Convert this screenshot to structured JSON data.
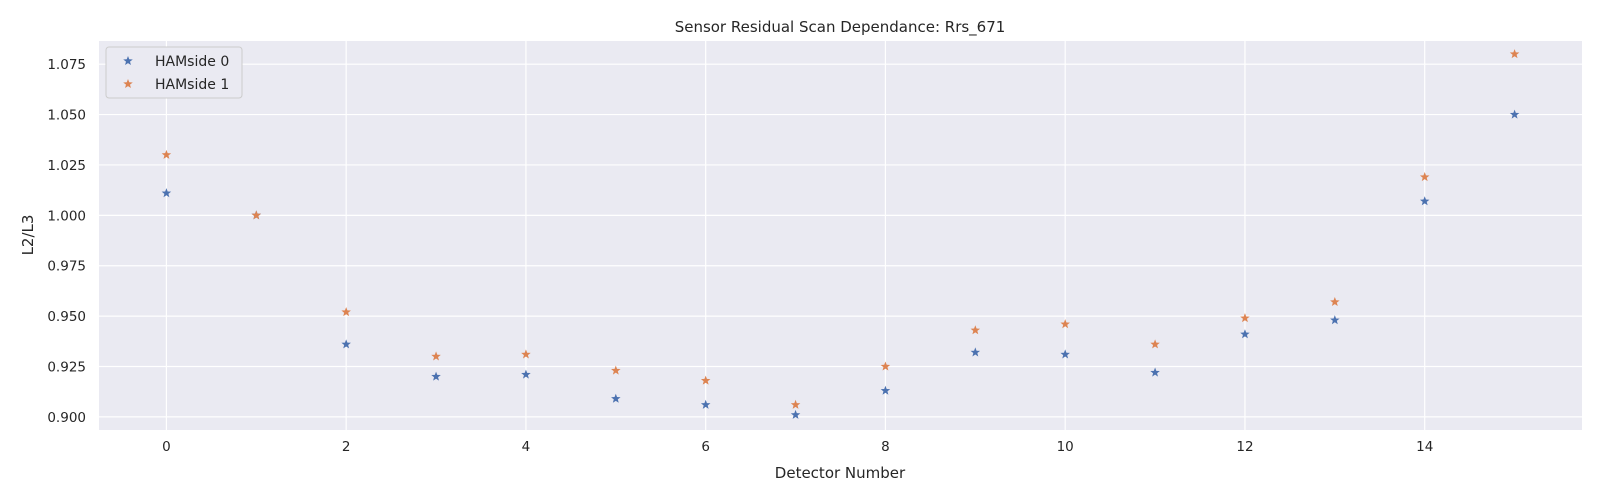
{
  "chart_data": {
    "type": "scatter",
    "title": "Sensor Residual Scan Dependance: Rrs_671",
    "xlabel": "Detector Number",
    "ylabel": "L2/L3",
    "xlim": [
      -0.75,
      15.75
    ],
    "ylim": [
      0.8935,
      1.0865
    ],
    "xticks": [
      0,
      2,
      4,
      6,
      8,
      10,
      12,
      14
    ],
    "yticks": [
      0.9,
      0.925,
      0.95,
      0.975,
      1.0,
      1.025,
      1.05,
      1.075
    ],
    "ytick_labels": [
      "0.900",
      "0.925",
      "0.950",
      "0.975",
      "1.000",
      "1.025",
      "1.050",
      "1.075"
    ],
    "marker": "star",
    "grid": true,
    "legend_position": "top-left",
    "x": [
      0,
      1,
      2,
      3,
      4,
      5,
      6,
      7,
      8,
      9,
      10,
      11,
      12,
      13,
      14,
      15
    ],
    "series": [
      {
        "name": "HAMside 0",
        "color": "#4c72b0",
        "values": [
          1.011,
          1.0,
          0.936,
          0.92,
          0.921,
          0.909,
          0.906,
          0.901,
          0.913,
          0.932,
          0.931,
          0.922,
          0.941,
          0.948,
          1.007,
          1.05
        ]
      },
      {
        "name": "HAMside 1",
        "color": "#dd8452",
        "values": [
          1.03,
          1.0,
          0.952,
          0.93,
          0.931,
          0.923,
          0.918,
          0.906,
          0.925,
          0.943,
          0.946,
          0.936,
          0.949,
          0.957,
          1.019,
          1.08
        ]
      }
    ],
    "style": {
      "plot_background": "#eaeaf2",
      "grid_color": "#ffffff",
      "text_color": "#262626"
    }
  }
}
